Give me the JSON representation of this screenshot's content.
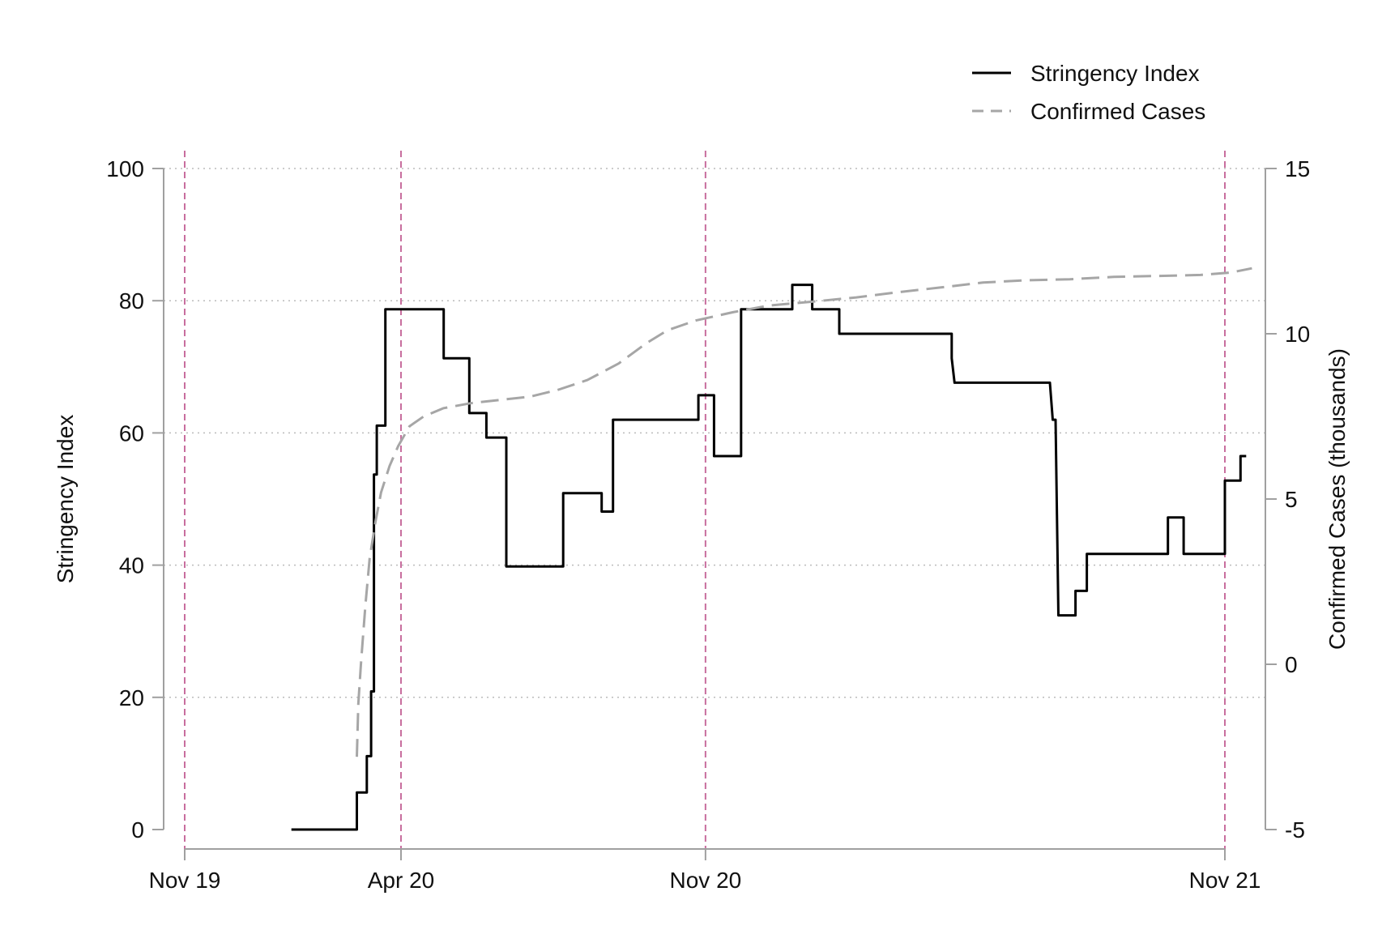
{
  "chart_data": {
    "type": "line",
    "title": "",
    "xlabel": "",
    "ylabel_left": "Stringency Index",
    "ylabel_right": "Confirmed Cases (thousands)",
    "x_ticks": [
      "Nov 19",
      "Apr 20",
      "Nov 20",
      "Nov 21"
    ],
    "y_left_ticks": [
      "0",
      "20",
      "40",
      "60",
      "80",
      "100"
    ],
    "y_right_ticks": [
      "-5",
      "0",
      "5",
      "10",
      "15"
    ],
    "y_left_lim": [
      0,
      100
    ],
    "y_right_lim": [
      -5,
      15
    ],
    "grid": "horizontal dotted at left-axis ticks",
    "legend_position": "top-right",
    "vertical_reference_lines": [
      "Nov 19",
      "Apr 20",
      "Nov 20",
      "Nov 21"
    ],
    "colors": {
      "stringency": "#000000",
      "cases": "#a6a6a6",
      "reference": "#c86e9e",
      "grid": "#bbbbbb",
      "axis": "#a0a0a0"
    },
    "series": [
      {
        "name": "Stringency Index",
        "axis": "left",
        "style": "solid-step",
        "points": [
          [
            "2020-01-15",
            0
          ],
          [
            "2020-03-01",
            0
          ],
          [
            "2020-03-01",
            5.6
          ],
          [
            "2020-03-08",
            5.6
          ],
          [
            "2020-03-08",
            11.1
          ],
          [
            "2020-03-11",
            11.1
          ],
          [
            "2020-03-11",
            20.9
          ],
          [
            "2020-03-13",
            20.9
          ],
          [
            "2020-03-13",
            53.7
          ],
          [
            "2020-03-15",
            53.7
          ],
          [
            "2020-03-15",
            61.1
          ],
          [
            "2020-03-21",
            61.1
          ],
          [
            "2020-03-21",
            78.7
          ],
          [
            "2020-05-01",
            78.7
          ],
          [
            "2020-05-01",
            71.3
          ],
          [
            "2020-05-19",
            71.3
          ],
          [
            "2020-05-19",
            63.0
          ],
          [
            "2020-05-31",
            63.0
          ],
          [
            "2020-05-31",
            59.3
          ],
          [
            "2020-06-14",
            59.3
          ],
          [
            "2020-06-14",
            39.8
          ],
          [
            "2020-07-24",
            39.8
          ],
          [
            "2020-07-24",
            50.9
          ],
          [
            "2020-08-20",
            50.9
          ],
          [
            "2020-08-20",
            48.1
          ],
          [
            "2020-08-28",
            48.1
          ],
          [
            "2020-08-28",
            62.0
          ],
          [
            "2020-10-27",
            62.0
          ],
          [
            "2020-10-27",
            65.7
          ],
          [
            "2020-11-07",
            65.7
          ],
          [
            "2020-11-07",
            56.5
          ],
          [
            "2020-11-26",
            56.5
          ],
          [
            "2020-11-26",
            78.7
          ],
          [
            "2021-01-01",
            78.7
          ],
          [
            "2021-01-01",
            82.4
          ],
          [
            "2021-01-15",
            82.4
          ],
          [
            "2021-01-15",
            78.7
          ],
          [
            "2021-02-03",
            78.7
          ],
          [
            "2021-02-03",
            75.0
          ],
          [
            "2021-04-23",
            75.0
          ],
          [
            "2021-04-23",
            71.3
          ],
          [
            "2021-04-25",
            67.6
          ],
          [
            "2021-07-01",
            67.6
          ],
          [
            "2021-07-03",
            62.0
          ],
          [
            "2021-07-05",
            62.0
          ],
          [
            "2021-07-07",
            32.4
          ],
          [
            "2021-07-19",
            32.4
          ],
          [
            "2021-07-19",
            36.1
          ],
          [
            "2021-07-27",
            36.1
          ],
          [
            "2021-07-27",
            41.7
          ],
          [
            "2021-09-22",
            41.7
          ],
          [
            "2021-09-22",
            47.2
          ],
          [
            "2021-10-03",
            47.2
          ],
          [
            "2021-10-03",
            41.7
          ],
          [
            "2021-11-01",
            41.7
          ],
          [
            "2021-11-01",
            52.8
          ],
          [
            "2021-11-12",
            52.8
          ],
          [
            "2021-11-12",
            56.5
          ],
          [
            "2021-11-16",
            56.5
          ]
        ]
      },
      {
        "name": "Confirmed Cases",
        "axis": "right",
        "style": "dashed",
        "points": [
          [
            "2020-03-01",
            -2.8
          ],
          [
            "2020-03-02",
            -1.2
          ],
          [
            "2020-03-04",
            0.1
          ],
          [
            "2020-03-07",
            1.8
          ],
          [
            "2020-03-10",
            3.2
          ],
          [
            "2020-03-14",
            4.3
          ],
          [
            "2020-03-18",
            5.2
          ],
          [
            "2020-03-24",
            6.0
          ],
          [
            "2020-03-30",
            6.6
          ],
          [
            "2020-04-07",
            7.2
          ],
          [
            "2020-04-17",
            7.5
          ],
          [
            "2020-05-01",
            7.75
          ],
          [
            "2020-05-20",
            7.9
          ],
          [
            "2020-06-10",
            8.0
          ],
          [
            "2020-07-01",
            8.1
          ],
          [
            "2020-07-20",
            8.3
          ],
          [
            "2020-08-10",
            8.6
          ],
          [
            "2020-09-01",
            9.1
          ],
          [
            "2020-09-20",
            9.7
          ],
          [
            "2020-10-05",
            10.1
          ],
          [
            "2020-10-25",
            10.4
          ],
          [
            "2020-11-20",
            10.65
          ],
          [
            "2020-12-15",
            10.85
          ],
          [
            "2021-01-15",
            10.97
          ],
          [
            "2021-02-15",
            11.1
          ],
          [
            "2021-03-15",
            11.25
          ],
          [
            "2021-04-15",
            11.4
          ],
          [
            "2021-05-15",
            11.55
          ],
          [
            "2021-06-15",
            11.62
          ],
          [
            "2021-07-15",
            11.65
          ],
          [
            "2021-08-15",
            11.72
          ],
          [
            "2021-09-15",
            11.75
          ],
          [
            "2021-10-15",
            11.78
          ],
          [
            "2021-11-05",
            11.85
          ],
          [
            "2021-11-20",
            11.98
          ]
        ]
      }
    ]
  }
}
